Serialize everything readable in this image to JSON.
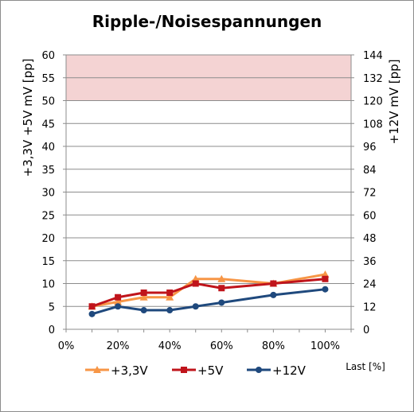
{
  "chart_data": {
    "type": "line",
    "title": "Ripple-/Noisespannungen",
    "xlabel": "Last [%]",
    "ylabel_left": "+3,3V +5V     mV [pp]",
    "ylabel_right": "+12V     mV [pp]",
    "xlim": [
      0,
      110
    ],
    "ylim_left": [
      0,
      60
    ],
    "ylim_right": [
      0,
      144
    ],
    "x_ticks": [
      "0%",
      "20%",
      "40%",
      "60%",
      "80%",
      "100%"
    ],
    "y_ticks_left": [
      "0",
      "5",
      "10",
      "15",
      "20",
      "25",
      "30",
      "35",
      "40",
      "45",
      "50",
      "55",
      "60"
    ],
    "y_ticks_right": [
      "0",
      "12",
      "24",
      "36",
      "48",
      "60",
      "72",
      "84",
      "96",
      "108",
      "120",
      "132",
      "144"
    ],
    "limit_band": {
      "from": 50,
      "to": 60,
      "color": "#f4d3d3"
    },
    "grid": true,
    "legend": "bottom",
    "series": [
      {
        "name": "+3,3V",
        "axis": "left",
        "color": "#f79646",
        "marker": "triangle",
        "x": [
          10,
          20,
          30,
          40,
          50,
          60,
          80,
          100
        ],
        "values": [
          5,
          6,
          7,
          7,
          11,
          11,
          10,
          12
        ]
      },
      {
        "name": "+5V",
        "axis": "left",
        "color": "#c0141b",
        "marker": "square",
        "x": [
          10,
          20,
          30,
          40,
          50,
          60,
          80,
          100
        ],
        "values": [
          5,
          7,
          8,
          8,
          10,
          9,
          10,
          11
        ]
      },
      {
        "name": "+12V",
        "axis": "right",
        "color": "#1f497d",
        "marker": "circle",
        "x": [
          10,
          20,
          30,
          40,
          50,
          60,
          80,
          100
        ],
        "values": [
          8,
          12,
          10,
          10,
          12,
          14,
          18,
          21
        ]
      }
    ]
  }
}
